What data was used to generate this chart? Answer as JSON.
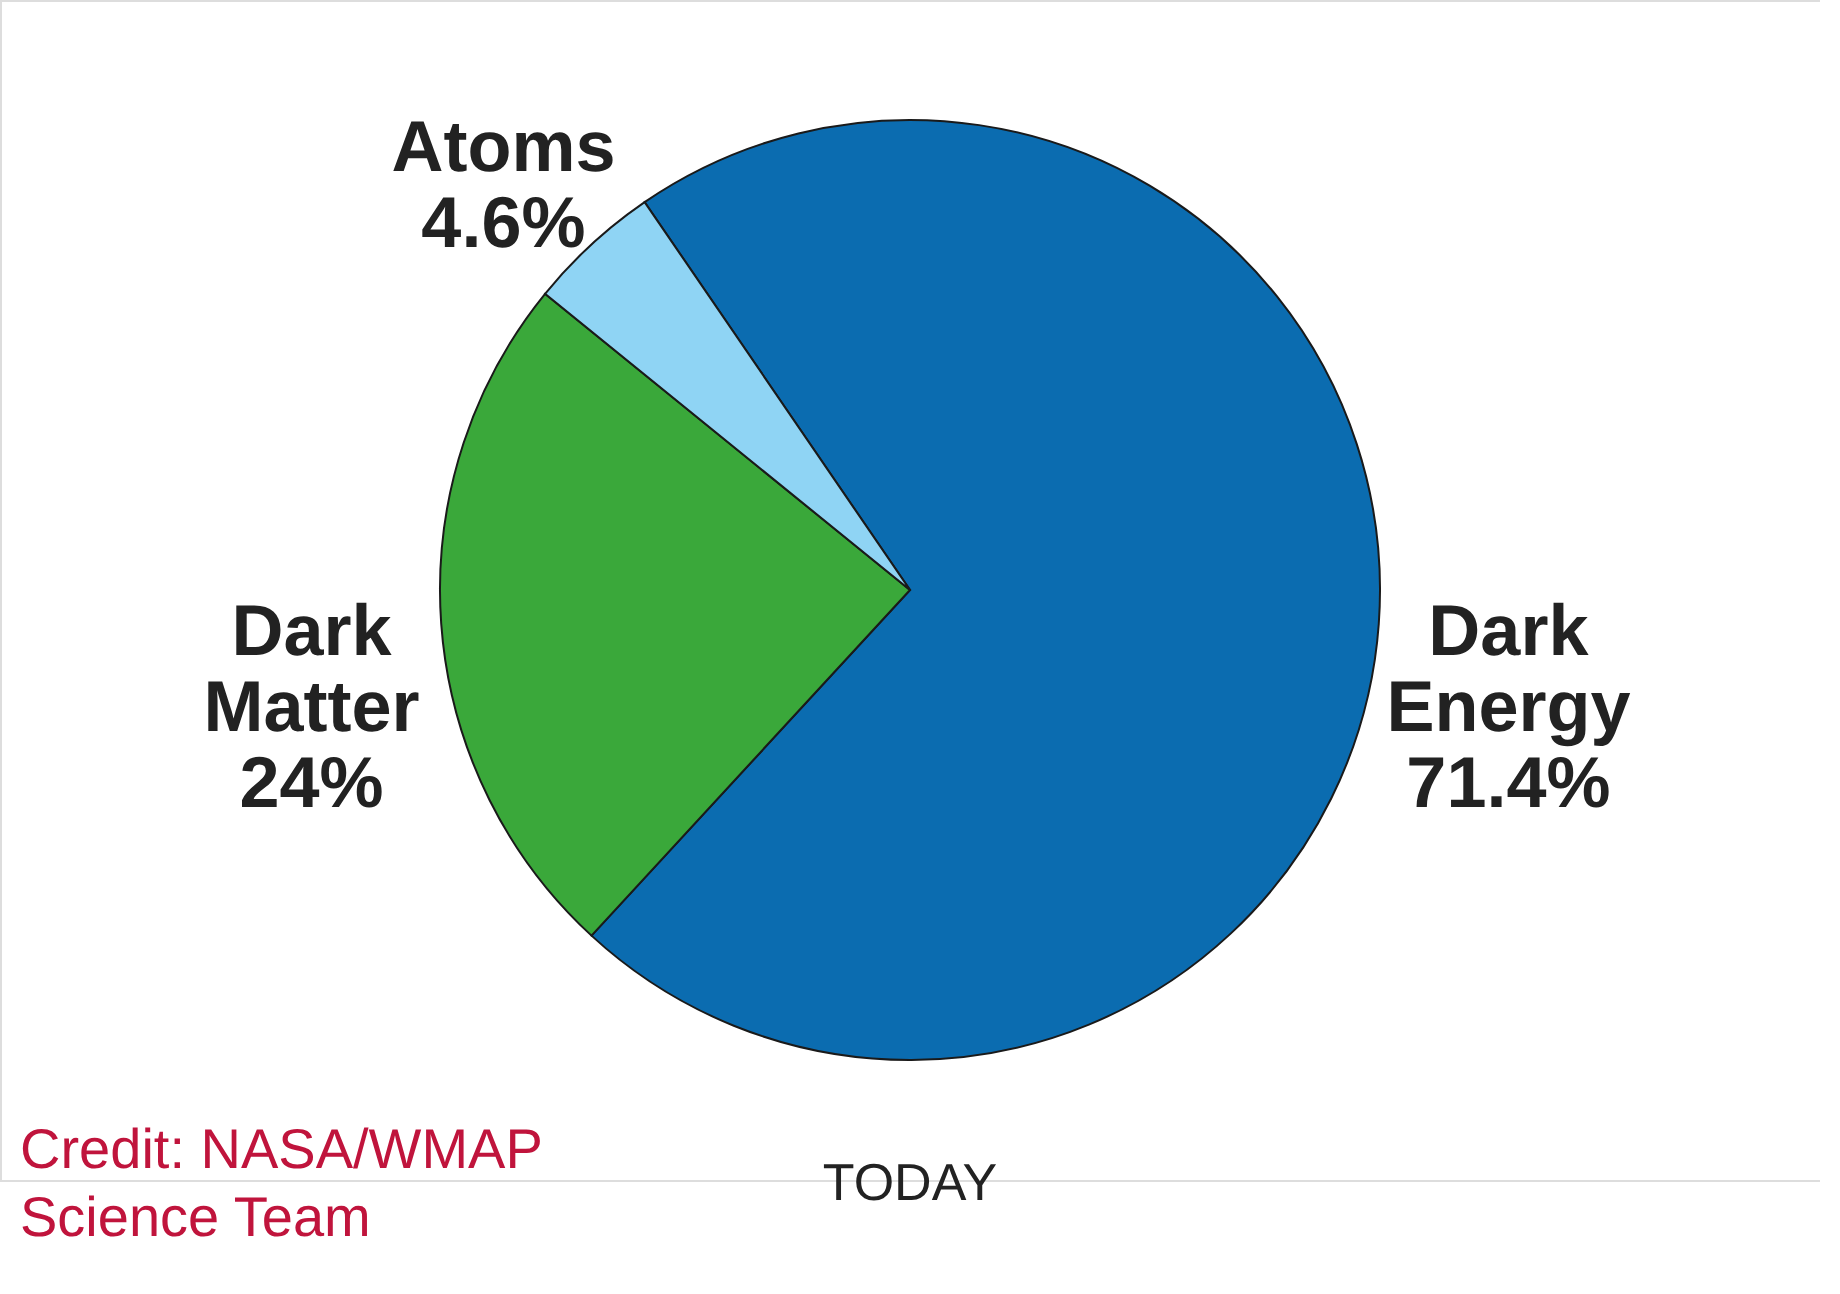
{
  "chart_data": {
    "type": "pie",
    "title": "TODAY",
    "categories": [
      "Dark Energy",
      "Dark Matter",
      "Atoms"
    ],
    "values": [
      71.4,
      24,
      4.6
    ],
    "value_labels": [
      "71.4%",
      "24%",
      "4.6%"
    ],
    "colors": [
      "#0b6cb0",
      "#3aa83a",
      "#8fd4f4"
    ],
    "legend": false,
    "annotations": [
      "Credit: NASA/WMAP Science Team"
    ]
  }
}
